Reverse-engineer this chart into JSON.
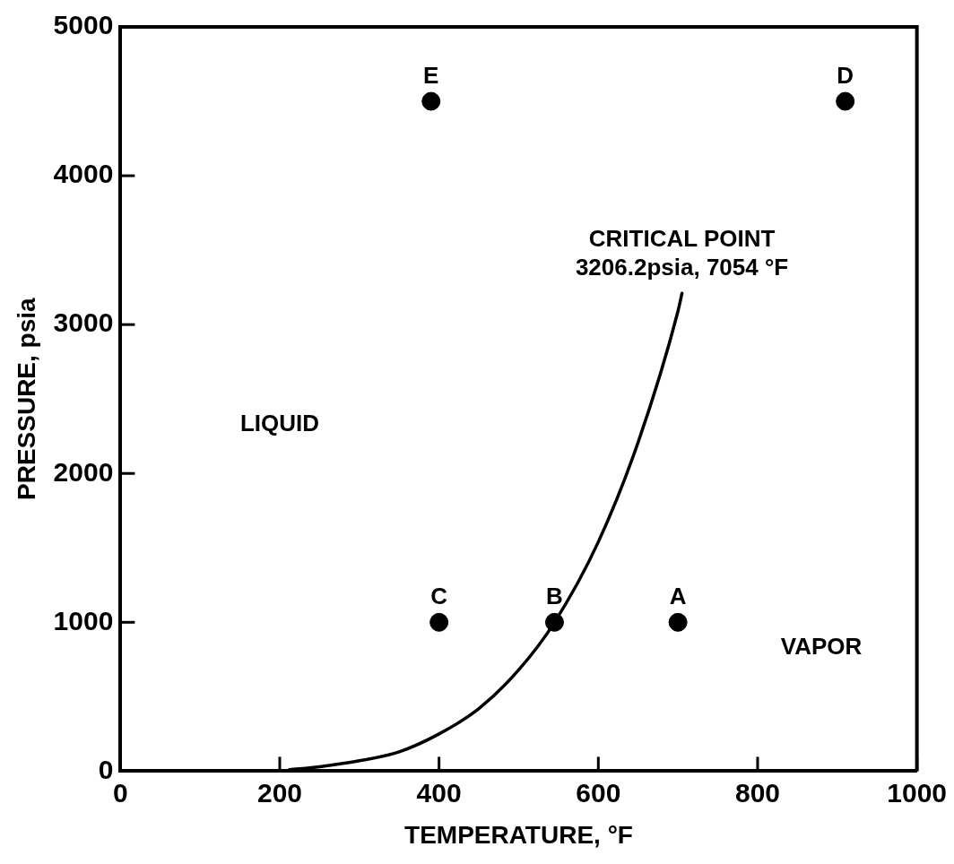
{
  "chart_data": {
    "type": "line",
    "xlabel": "TEMPERATURE, °F",
    "ylabel": "PRESSURE, psia",
    "xlim": [
      0,
      1000
    ],
    "xticks": [
      0,
      200,
      400,
      600,
      800,
      1000
    ],
    "ylim": [
      0,
      5000
    ],
    "yticks": [
      0,
      1000,
      2000,
      3000,
      4000,
      5000
    ],
    "legend": false,
    "series": [
      {
        "color": "#000000",
        "marker": "none",
        "x": [
          212,
          250,
          300,
          350,
          400,
          450,
          500,
          545,
          600,
          650,
          700,
          705
        ],
        "values": [
          10,
          30,
          70,
          130,
          250,
          420,
          680,
          1000,
          1540,
          2210,
          3090,
          3210
        ]
      },
      {
        "type": "scatter",
        "color": "#000000",
        "marker": "circle",
        "x": [
          700,
          545,
          400,
          910,
          390
        ],
        "values": [
          1000,
          1000,
          1000,
          4500,
          4500
        ]
      }
    ],
    "annotations": [
      {
        "text": "A",
        "x": 700,
        "y": 1000
      },
      {
        "text": "B",
        "x": 545,
        "y": 1000
      },
      {
        "text": "C",
        "x": 400,
        "y": 1000
      },
      {
        "text": "D",
        "x": 910,
        "y": 4500
      },
      {
        "text": "E",
        "x": 390,
        "y": 4500
      },
      {
        "text": "CRITICAL POINT\n3206.2psia, 7054 °F",
        "x": 705,
        "y": 3210
      },
      "LIQUID",
      "VAPOR"
    ]
  }
}
